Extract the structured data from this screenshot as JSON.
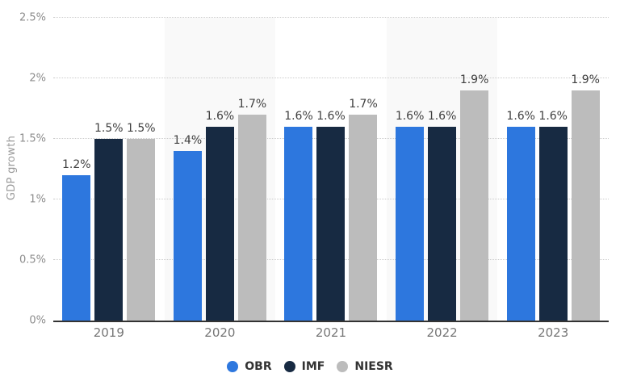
{
  "chart_data": {
    "type": "bar",
    "title": "",
    "ylabel": "GDP growth",
    "categories": [
      "2019",
      "2020",
      "2021",
      "2022",
      "2023"
    ],
    "series": [
      {
        "name": "OBR",
        "color": "#2d77de",
        "values": [
          1.2,
          1.4,
          1.6,
          1.6,
          1.6
        ],
        "labels": [
          "1.2%",
          "1.4%",
          "1.6%",
          "1.6%",
          "1.6%"
        ]
      },
      {
        "name": "IMF",
        "color": "#172a42",
        "values": [
          1.5,
          1.6,
          1.6,
          1.6,
          1.6
        ],
        "labels": [
          "1.5%",
          "1.6%",
          "1.6%",
          "1.6%",
          "1.6%"
        ]
      },
      {
        "name": "NIESR",
        "color": "#bcbcbc",
        "values": [
          1.5,
          1.7,
          1.7,
          1.9,
          1.9
        ],
        "labels": [
          "1.5%",
          "1.7%",
          "1.7%",
          "1.9%",
          "1.9%"
        ]
      }
    ],
    "ylim": [
      0,
      2.5
    ],
    "yticks": [
      0,
      0.5,
      1,
      1.5,
      2,
      2.5
    ],
    "ytick_labels": [
      "0%",
      "0.5%",
      "1%",
      "1.5%",
      "2%",
      "2.5%"
    ],
    "value_suffix": "%",
    "grid": "horizontal-dotted",
    "legend_position": "bottom",
    "banded_categories": [
      "2020",
      "2022"
    ],
    "band_color": "#f9f9f9",
    "colors": {
      "gridline": "#cccccc",
      "baseline": "#333333",
      "tick_text": "#8c8c8c",
      "category_text": "#767676",
      "value_label_text": "#404040",
      "axis_title_text": "#9a9a9a",
      "legend_text": "#333333"
    }
  }
}
